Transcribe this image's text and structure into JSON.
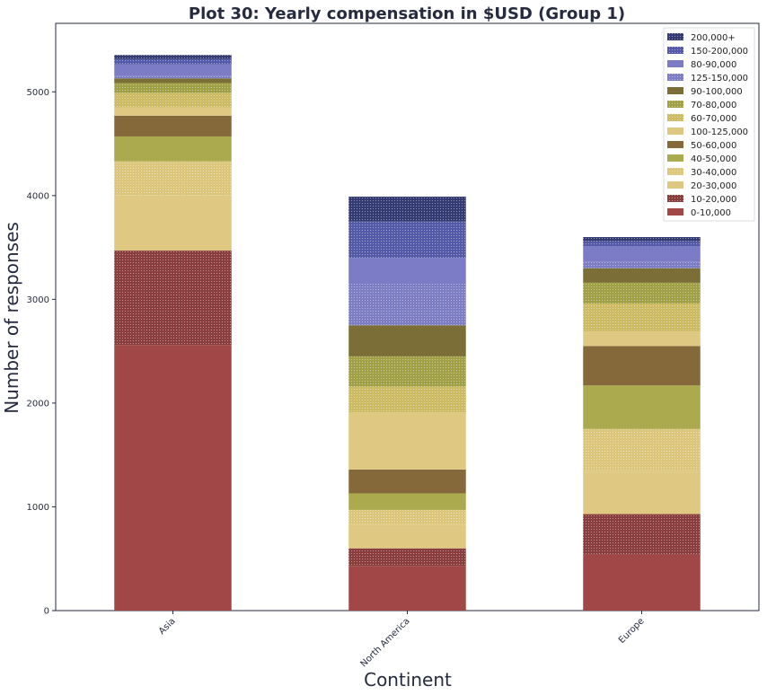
{
  "chart_data": {
    "type": "bar",
    "stacked": true,
    "title": "Plot 30: Yearly compensation in $USD (Group 1)",
    "xlabel": "Continent",
    "ylabel": "Number of responses",
    "categories": [
      "Asia",
      "North America",
      "Europe"
    ],
    "ylim": [
      0,
      5660
    ],
    "yticks": [
      0,
      1000,
      2000,
      3000,
      4000,
      5000
    ],
    "legend_position": "top-right",
    "series": [
      {
        "name": "0-10,000",
        "values": [
          2560,
          430,
          540
        ],
        "color": "#a24747",
        "pattern": "none"
      },
      {
        "name": "10-20,000",
        "values": [
          910,
          170,
          390
        ],
        "color": "#8a3d3d",
        "pattern": "dots"
      },
      {
        "name": "20-30,000",
        "values": [
          530,
          230,
          410
        ],
        "color": "#dfc882",
        "pattern": "none"
      },
      {
        "name": "30-40,000",
        "values": [
          330,
          140,
          410
        ],
        "color": "#dcc67c",
        "pattern": "dots"
      },
      {
        "name": "40-50,000",
        "values": [
          240,
          160,
          420
        ],
        "color": "#acaa4e",
        "pattern": "none"
      },
      {
        "name": "50-60,000",
        "values": [
          200,
          230,
          380
        ],
        "color": "#86693a",
        "pattern": "none"
      },
      {
        "name": "100-125,000",
        "values": [
          80,
          550,
          140
        ],
        "color": "#dfc982",
        "pattern": "none"
      },
      {
        "name": "60-70,000",
        "values": [
          140,
          250,
          270
        ],
        "color": "#ccbb62",
        "pattern": "dots"
      },
      {
        "name": "70-80,000",
        "values": [
          95,
          290,
          200
        ],
        "color": "#a0a046",
        "pattern": "dots"
      },
      {
        "name": "90-100,000",
        "values": [
          45,
          300,
          140
        ],
        "color": "#7c6e37",
        "pattern": "none"
      },
      {
        "name": "125-150,000",
        "values": [
          25,
          400,
          60
        ],
        "color": "#7d7dc4",
        "pattern": "dots"
      },
      {
        "name": "80-90,000",
        "values": [
          110,
          250,
          150
        ],
        "color": "#7b7bc6",
        "pattern": "none"
      },
      {
        "name": "150-200,000",
        "values": [
          50,
          350,
          50
        ],
        "color": "#555aa8",
        "pattern": "dots"
      },
      {
        "name": "200,000+",
        "values": [
          40,
          240,
          40
        ],
        "color": "#343a72",
        "pattern": "dots"
      }
    ],
    "legend_order": [
      "200,000+",
      "150-200,000",
      "80-90,000",
      "125-150,000",
      "90-100,000",
      "70-80,000",
      "60-70,000",
      "100-125,000",
      "50-60,000",
      "40-50,000",
      "30-40,000",
      "20-30,000",
      "10-20,000",
      "0-10,000"
    ]
  }
}
